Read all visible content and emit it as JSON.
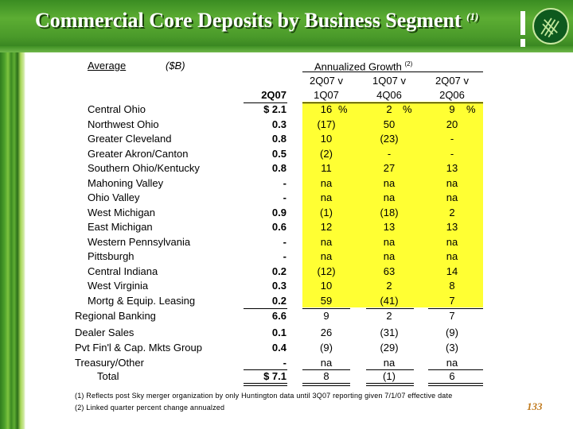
{
  "title": "Commercial Core Deposits by Business Segment",
  "title_note": "(1)",
  "header": {
    "average": "Average",
    "unit": "($B)",
    "growth": "Annualized Growth",
    "growth_note": "(2)",
    "col_2q07": "2Q07",
    "col_a_top": "2Q07 v",
    "col_a_bot": "1Q07",
    "col_b_top": "1Q07 v",
    "col_b_bot": "4Q06",
    "col_c_top": "2Q07 v",
    "col_c_bot": "2Q06"
  },
  "rows": [
    {
      "label": "Central Ohio",
      "val": "$   2.1",
      "a": "16",
      "b": "2",
      "c": "9"
    },
    {
      "label": "Northwest Ohio",
      "val": "0.3",
      "a": "(17)",
      "b": "50",
      "c": "20"
    },
    {
      "label": "Greater Cleveland",
      "val": "0.8",
      "a": "10",
      "b": "(23)",
      "c": "-"
    },
    {
      "label": "Greater Akron/Canton",
      "val": "0.5",
      "a": "(2)",
      "b": "-",
      "c": "-"
    },
    {
      "label": "Southern Ohio/Kentucky",
      "val": "0.8",
      "a": "11",
      "b": "27",
      "c": "13"
    },
    {
      "label": "Mahoning Valley",
      "val": "-",
      "a": "na",
      "b": "na",
      "c": "na"
    },
    {
      "label": "Ohio Valley",
      "val": "-",
      "a": "na",
      "b": "na",
      "c": "na"
    },
    {
      "label": "West Michigan",
      "val": "0.9",
      "a": "(1)",
      "b": "(18)",
      "c": "2"
    },
    {
      "label": "East Michigan",
      "val": "0.6",
      "a": "12",
      "b": "13",
      "c": "13"
    },
    {
      "label": "Western Pennsylvania",
      "val": "-",
      "a": "na",
      "b": "na",
      "c": "na"
    },
    {
      "label": "Pittsburgh",
      "val": "-",
      "a": "na",
      "b": "na",
      "c": "na"
    },
    {
      "label": "Central Indiana",
      "val": "0.2",
      "a": "(12)",
      "b": "63",
      "c": "14"
    },
    {
      "label": "West Virginia",
      "val": "0.3",
      "a": "10",
      "b": "2",
      "c": "8"
    },
    {
      "label": "Mortg & Equip. Leasing",
      "val": "0.2",
      "a": "59",
      "b": "(41)",
      "c": "7"
    }
  ],
  "regional": {
    "label": "Regional Banking",
    "val": "6.6",
    "a": "9",
    "b": "2",
    "c": "7"
  },
  "other_rows": [
    {
      "label": "Dealer Sales",
      "val": "0.1",
      "a": "26",
      "b": "(31)",
      "c": "(9)"
    },
    {
      "label": "Pvt Fin'l & Cap. Mkts Group",
      "val": "0.4",
      "a": "(9)",
      "b": "(29)",
      "c": "(3)"
    },
    {
      "label": "Treasury/Other",
      "val": "-",
      "a": "na",
      "b": "na",
      "c": "na"
    }
  ],
  "total": {
    "label": "Total",
    "val": "$   7.1",
    "a": "8",
    "b": "(1)",
    "c": "6"
  },
  "percent_sign": "%",
  "footnotes": [
    "(1)  Reflects post Sky merger organization by only Huntington data until 3Q07 reporting given 7/1/07 effective date",
    "(2)  Linked quarter percent change annualzed"
  ],
  "page_number": "133",
  "colors": {
    "header_green": "#4a9a2a",
    "highlight": "#ffff33",
    "page_number": "#c07a1e"
  }
}
